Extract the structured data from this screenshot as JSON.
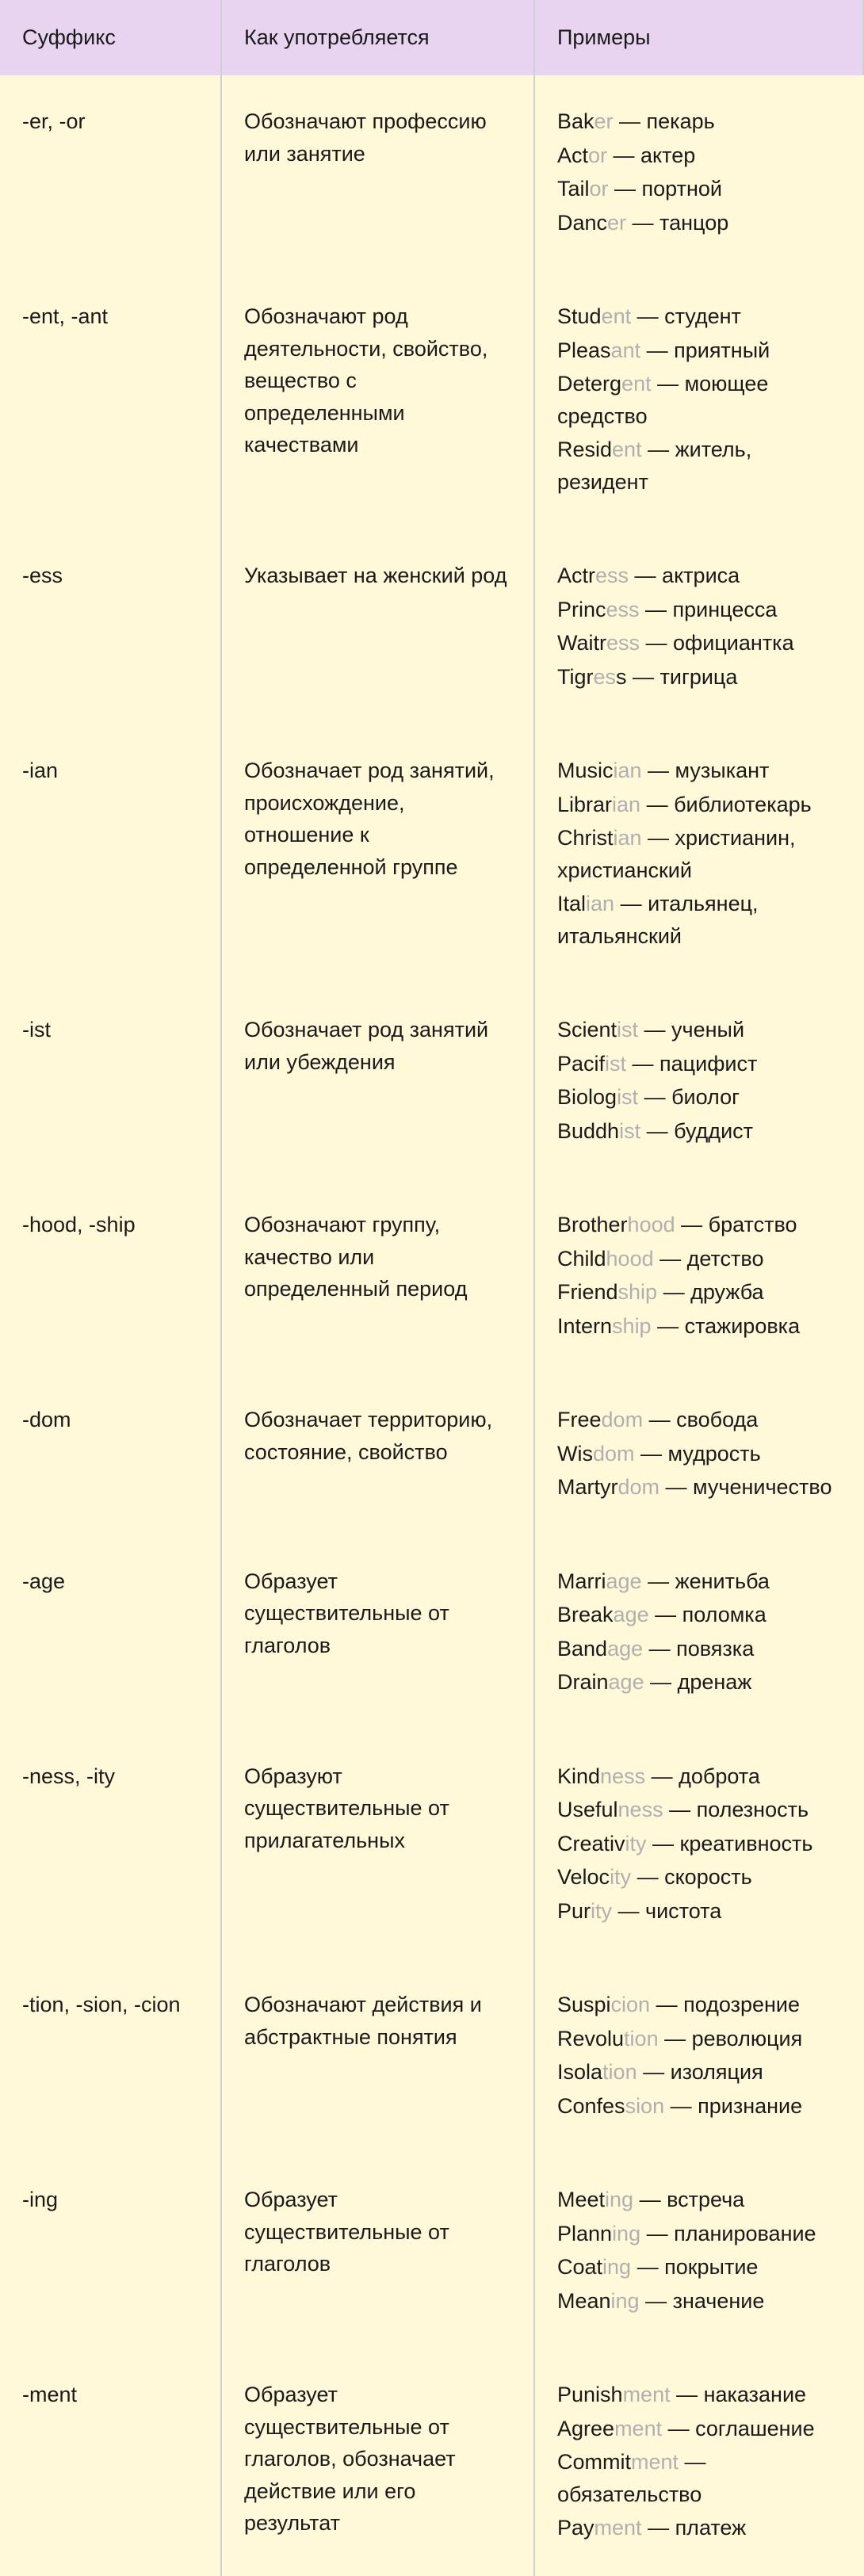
{
  "header": {
    "col1": "Суффикс",
    "col2": "Как употребляется",
    "col3": "Примеры"
  },
  "rows": [
    {
      "suffix": "-er, -or",
      "usage": "Обозначают профессию или занятие",
      "examples": [
        {
          "base": "Bak",
          "hl": "er",
          "tail": " — пекарь"
        },
        {
          "base": "Act",
          "hl": "or",
          "tail": " — актер"
        },
        {
          "base": "Tail",
          "hl": "or",
          "tail": " — портной"
        },
        {
          "base": "Danc",
          "hl": "er",
          "tail": " — танцор"
        }
      ]
    },
    {
      "suffix": "-ent, -ant",
      "usage": "Обозначают род деятельности, свойство, вещество с определенными качествами",
      "examples": [
        {
          "base": "Stud",
          "hl": "ent",
          "tail": " — студент"
        },
        {
          "base": "Pleas",
          "hl": "ant",
          "tail": " — приятный"
        },
        {
          "base": "Deterg",
          "hl": "ent",
          "tail": " — моющее средство"
        },
        {
          "base": "Resid",
          "hl": "ent",
          "tail": " — житель, резидент"
        }
      ]
    },
    {
      "suffix": "-ess",
      "usage": "Указывает на женский род",
      "examples": [
        {
          "base": "Actr",
          "hl": "ess",
          "tail": " — актриса"
        },
        {
          "base": "Princ",
          "hl": "ess",
          "tail": " — принцесса"
        },
        {
          "base": "Waitr",
          "hl": "ess",
          "tail": " — официантка"
        },
        {
          "base": "Tigr",
          "hl": "es",
          "tail": "s — тигрица"
        }
      ]
    },
    {
      "suffix": "-ian",
      "usage": "Обозначает род занятий, происхождение, отношение к определенной группе",
      "examples": [
        {
          "base": "Music",
          "hl": "ian",
          "tail": " — музыкант"
        },
        {
          "base": "Librar",
          "hl": "ian",
          "tail": " — библиотекарь"
        },
        {
          "base": "Christ",
          "hl": "ian",
          "tail": " — христианин, христианский"
        },
        {
          "base": "Ital",
          "hl": "ian",
          "tail": " — итальянец, итальянский"
        }
      ]
    },
    {
      "suffix": "-ist",
      "usage": "Обозначает род занятий или убеждения",
      "examples": [
        {
          "base": "Scient",
          "hl": "ist",
          "tail": " — ученый"
        },
        {
          "base": "Pacif",
          "hl": "ist",
          "tail": " — пацифист"
        },
        {
          "base": "Biolog",
          "hl": "ist",
          "tail": " — биолог"
        },
        {
          "base": "Buddh",
          "hl": "ist",
          "tail": " — буддист"
        }
      ]
    },
    {
      "suffix": "-hood, -ship",
      "usage": "Обозначают группу, качество или определенный период",
      "examples": [
        {
          "base": "Brother",
          "hl": "hood",
          "tail": " — братство"
        },
        {
          "base": "Child",
          "hl": "hood",
          "tail": " — детство"
        },
        {
          "base": "Friend",
          "hl": "ship",
          "tail": " — дружба"
        },
        {
          "base": "Intern",
          "hl": "ship",
          "tail": " — стажировка"
        }
      ]
    },
    {
      "suffix": "-dom",
      "usage": "Обозначает территорию, состояние, свойство",
      "examples": [
        {
          "base": "Free",
          "hl": "dom",
          "tail": " — свобода"
        },
        {
          "base": "Wis",
          "hl": "dom",
          "tail": " — мудрость"
        },
        {
          "base": "Martyr",
          "hl": "dom",
          "tail": " — мученичество"
        }
      ]
    },
    {
      "suffix": "-age",
      "usage": "Образует существительные от глаголов",
      "examples": [
        {
          "base": "Marri",
          "hl": "age",
          "tail": " — женитьба"
        },
        {
          "base": "Break",
          "hl": "age",
          "tail": " — поломка"
        },
        {
          "base": "Band",
          "hl": "age",
          "tail": " — повязка"
        },
        {
          "base": "Drain",
          "hl": "age",
          "tail": " — дренаж"
        }
      ]
    },
    {
      "suffix": "-ness, -ity",
      "usage": "Образуют существительные от прилагательных",
      "examples": [
        {
          "base": "Kind",
          "hl": "ness",
          "tail": " — доброта"
        },
        {
          "base": "Useful",
          "hl": "ness",
          "tail": " — полезность"
        },
        {
          "base": "Creativ",
          "hl": "ity",
          "tail": " — креативность"
        },
        {
          "base": "Veloc",
          "hl": "ity",
          "tail": " — скорость"
        },
        {
          "base": "Pur",
          "hl": "ity",
          "tail": " — чистота"
        }
      ]
    },
    {
      "suffix": "-tion, -sion, -cion",
      "usage": "Обозначают действия и абстрактные понятия",
      "examples": [
        {
          "base": "Suspi",
          "hl": "cion",
          "tail": " — подозрение"
        },
        {
          "base": "Revolu",
          "hl": "tion",
          "tail": " — революция"
        },
        {
          "base": "Isola",
          "hl": "tion",
          "tail": " — изоляция"
        },
        {
          "base": "Confes",
          "hl": "sion",
          "tail": " — признание"
        }
      ]
    },
    {
      "suffix": "-ing",
      "usage": "Образует существительные от глаголов",
      "examples": [
        {
          "base": "Meet",
          "hl": "ing",
          "tail": " — встреча"
        },
        {
          "base": "Plann",
          "hl": "ing",
          "tail": " — планирование"
        },
        {
          "base": "Coat",
          "hl": "ing",
          "tail": " — покрытие"
        },
        {
          "base": "Mean",
          "hl": "ing",
          "tail": " — значение"
        }
      ]
    },
    {
      "suffix": "-ment",
      "usage": "Образует существительные от глаголов, обозначает действие или его результат",
      "examples": [
        {
          "base": "Punish",
          "hl": "ment",
          "tail": " — наказание"
        },
        {
          "base": "Agree",
          "hl": "ment",
          "tail": " — соглашение"
        },
        {
          "base": "Commit",
          "hl": "ment",
          "tail": " — обязательство"
        },
        {
          "base": "Pay",
          "hl": "ment",
          "tail": " — платеж"
        }
      ]
    }
  ]
}
